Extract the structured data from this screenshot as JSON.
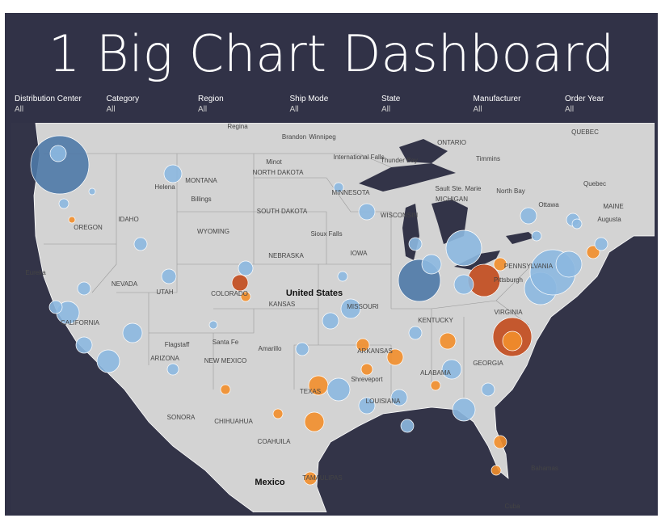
{
  "header": {
    "title": "1 Big Chart Dashboard"
  },
  "filters": [
    {
      "label": "Distribution Center",
      "value": "All"
    },
    {
      "label": "Category",
      "value": "All"
    },
    {
      "label": "Region",
      "value": "All"
    },
    {
      "label": "Ship Mode",
      "value": "All"
    },
    {
      "label": "State",
      "value": "All"
    },
    {
      "label": "Manufacturer",
      "value": "All"
    },
    {
      "label": "Order Year",
      "value": "All"
    }
  ],
  "map_labels": [
    "Regina",
    "Brandon",
    "Winnipeg",
    "ONTARIO",
    "Timmins",
    "Thunder Bay",
    "International Falls",
    "QUEBEC",
    "Quebec",
    "North Bay",
    "Ottawa",
    "MAINE",
    "Augusta",
    "Sault Ste. Marie",
    "MONTANA",
    "Helena",
    "Billings",
    "Minot",
    "NORTH DAKOTA",
    "MINNESOTA",
    "SOUTH DAKOTA",
    "Sioux Falls",
    "WYOMING",
    "IDAHO",
    "OREGON",
    "Eureka",
    "NEBRASKA",
    "IOWA",
    "WISCONSIN",
    "MICHIGAN",
    "NEVADA",
    "UTAH",
    "COLORADO",
    "KANSAS",
    "United States",
    "MISSOURI",
    "PENNSYLVANIA",
    "Pittsburgh",
    "VIRGINIA",
    "KENTUCKY",
    "ARKANSAS",
    "Amarillo",
    "Santa Fe",
    "Flagstaff",
    "ARIZONA",
    "NEW MEXICO",
    "TEXAS",
    "Shreveport",
    "LOUISIANA",
    "ALABAMA",
    "GEORGIA",
    "CALIFORNIA",
    "SONORA",
    "CHIHUAHUA",
    "COAHUILA",
    "Mexico",
    "Bahamas",
    "Cuba",
    "TAMAULIPAS"
  ]
}
